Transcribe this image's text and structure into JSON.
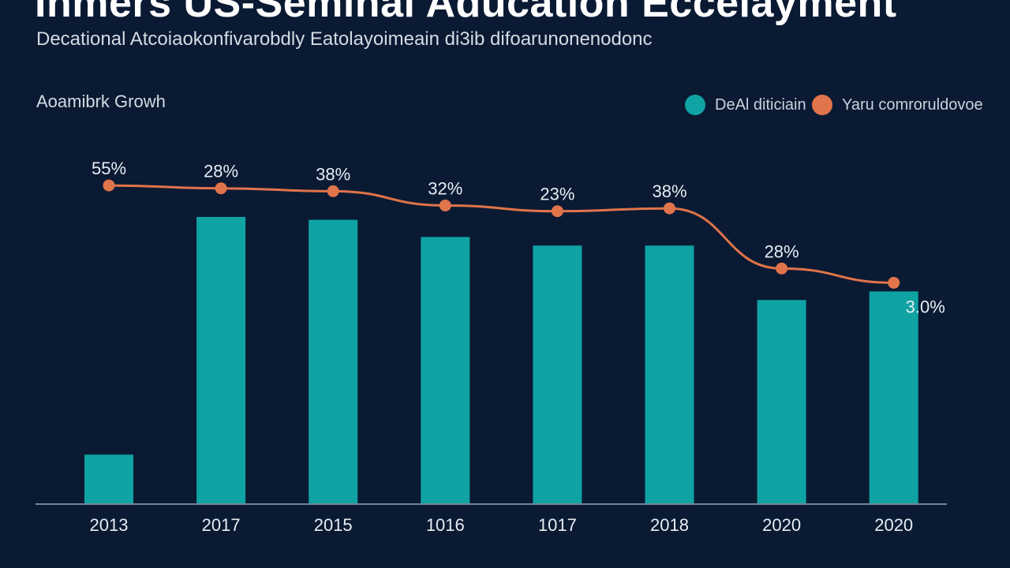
{
  "title": "Inmers US-Seminal Aducation Eccelayment",
  "subtitle": "Decational Atcoiaokonfivarobdly Eatolayoimeain di3ib difoarunonenodonc",
  "section_label": "Aoamibrk Growh",
  "colors": {
    "background": "#0a1a33",
    "bar": "#0fa3a3",
    "line": "#e0744a",
    "text": "#e6ecf2",
    "axis": "#9aa6b4"
  },
  "chart_data": {
    "type": "bar+line",
    "categories": [
      "2013",
      "2017",
      "2015",
      "1016",
      "1017",
      "2018",
      "2020",
      "2020"
    ],
    "legend_position": "top-right",
    "grid": false,
    "series": [
      {
        "name": "DeAl diticiain",
        "type": "bar",
        "color": "#0fa3a3",
        "values": [
          17,
          100,
          99,
          93,
          90,
          90,
          71,
          74
        ]
      },
      {
        "name": "Yaru comroruldovoe",
        "type": "line",
        "color": "#e0744a",
        "values": [
          111,
          110,
          109,
          104,
          102,
          103,
          82,
          77
        ],
        "data_labels": [
          "55%",
          "28%",
          "38%",
          "32%",
          "23%",
          "38%",
          "28%",
          "3.0%"
        ]
      }
    ],
    "ylim": [
      0,
      120
    ]
  }
}
